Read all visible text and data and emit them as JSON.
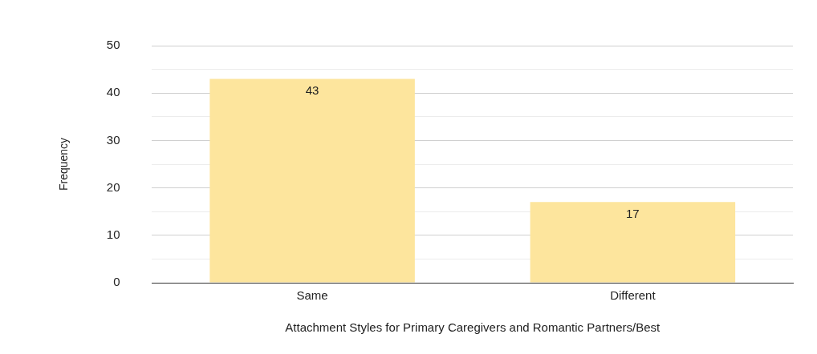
{
  "chart_data": {
    "type": "bar",
    "xlabel": "Attachment Styles for Primary Caregivers and Romantic Partners/Best",
    "ylabel": "Frequency",
    "categories": [
      "Same",
      "Different"
    ],
    "values": [
      43,
      17
    ],
    "color": "#fde59d",
    "ylim": [
      0,
      50
    ],
    "yticks": [
      0,
      {
        "value": 5,
        "label": null
      },
      10,
      {
        "value": 15,
        "label": null
      },
      20,
      {
        "value": 25,
        "label": null
      },
      30,
      {
        "value": 35,
        "label": null
      },
      40,
      {
        "value": 45,
        "label": null
      },
      50
    ],
    "grid": "y",
    "data_labels": true,
    "legend": false
  }
}
